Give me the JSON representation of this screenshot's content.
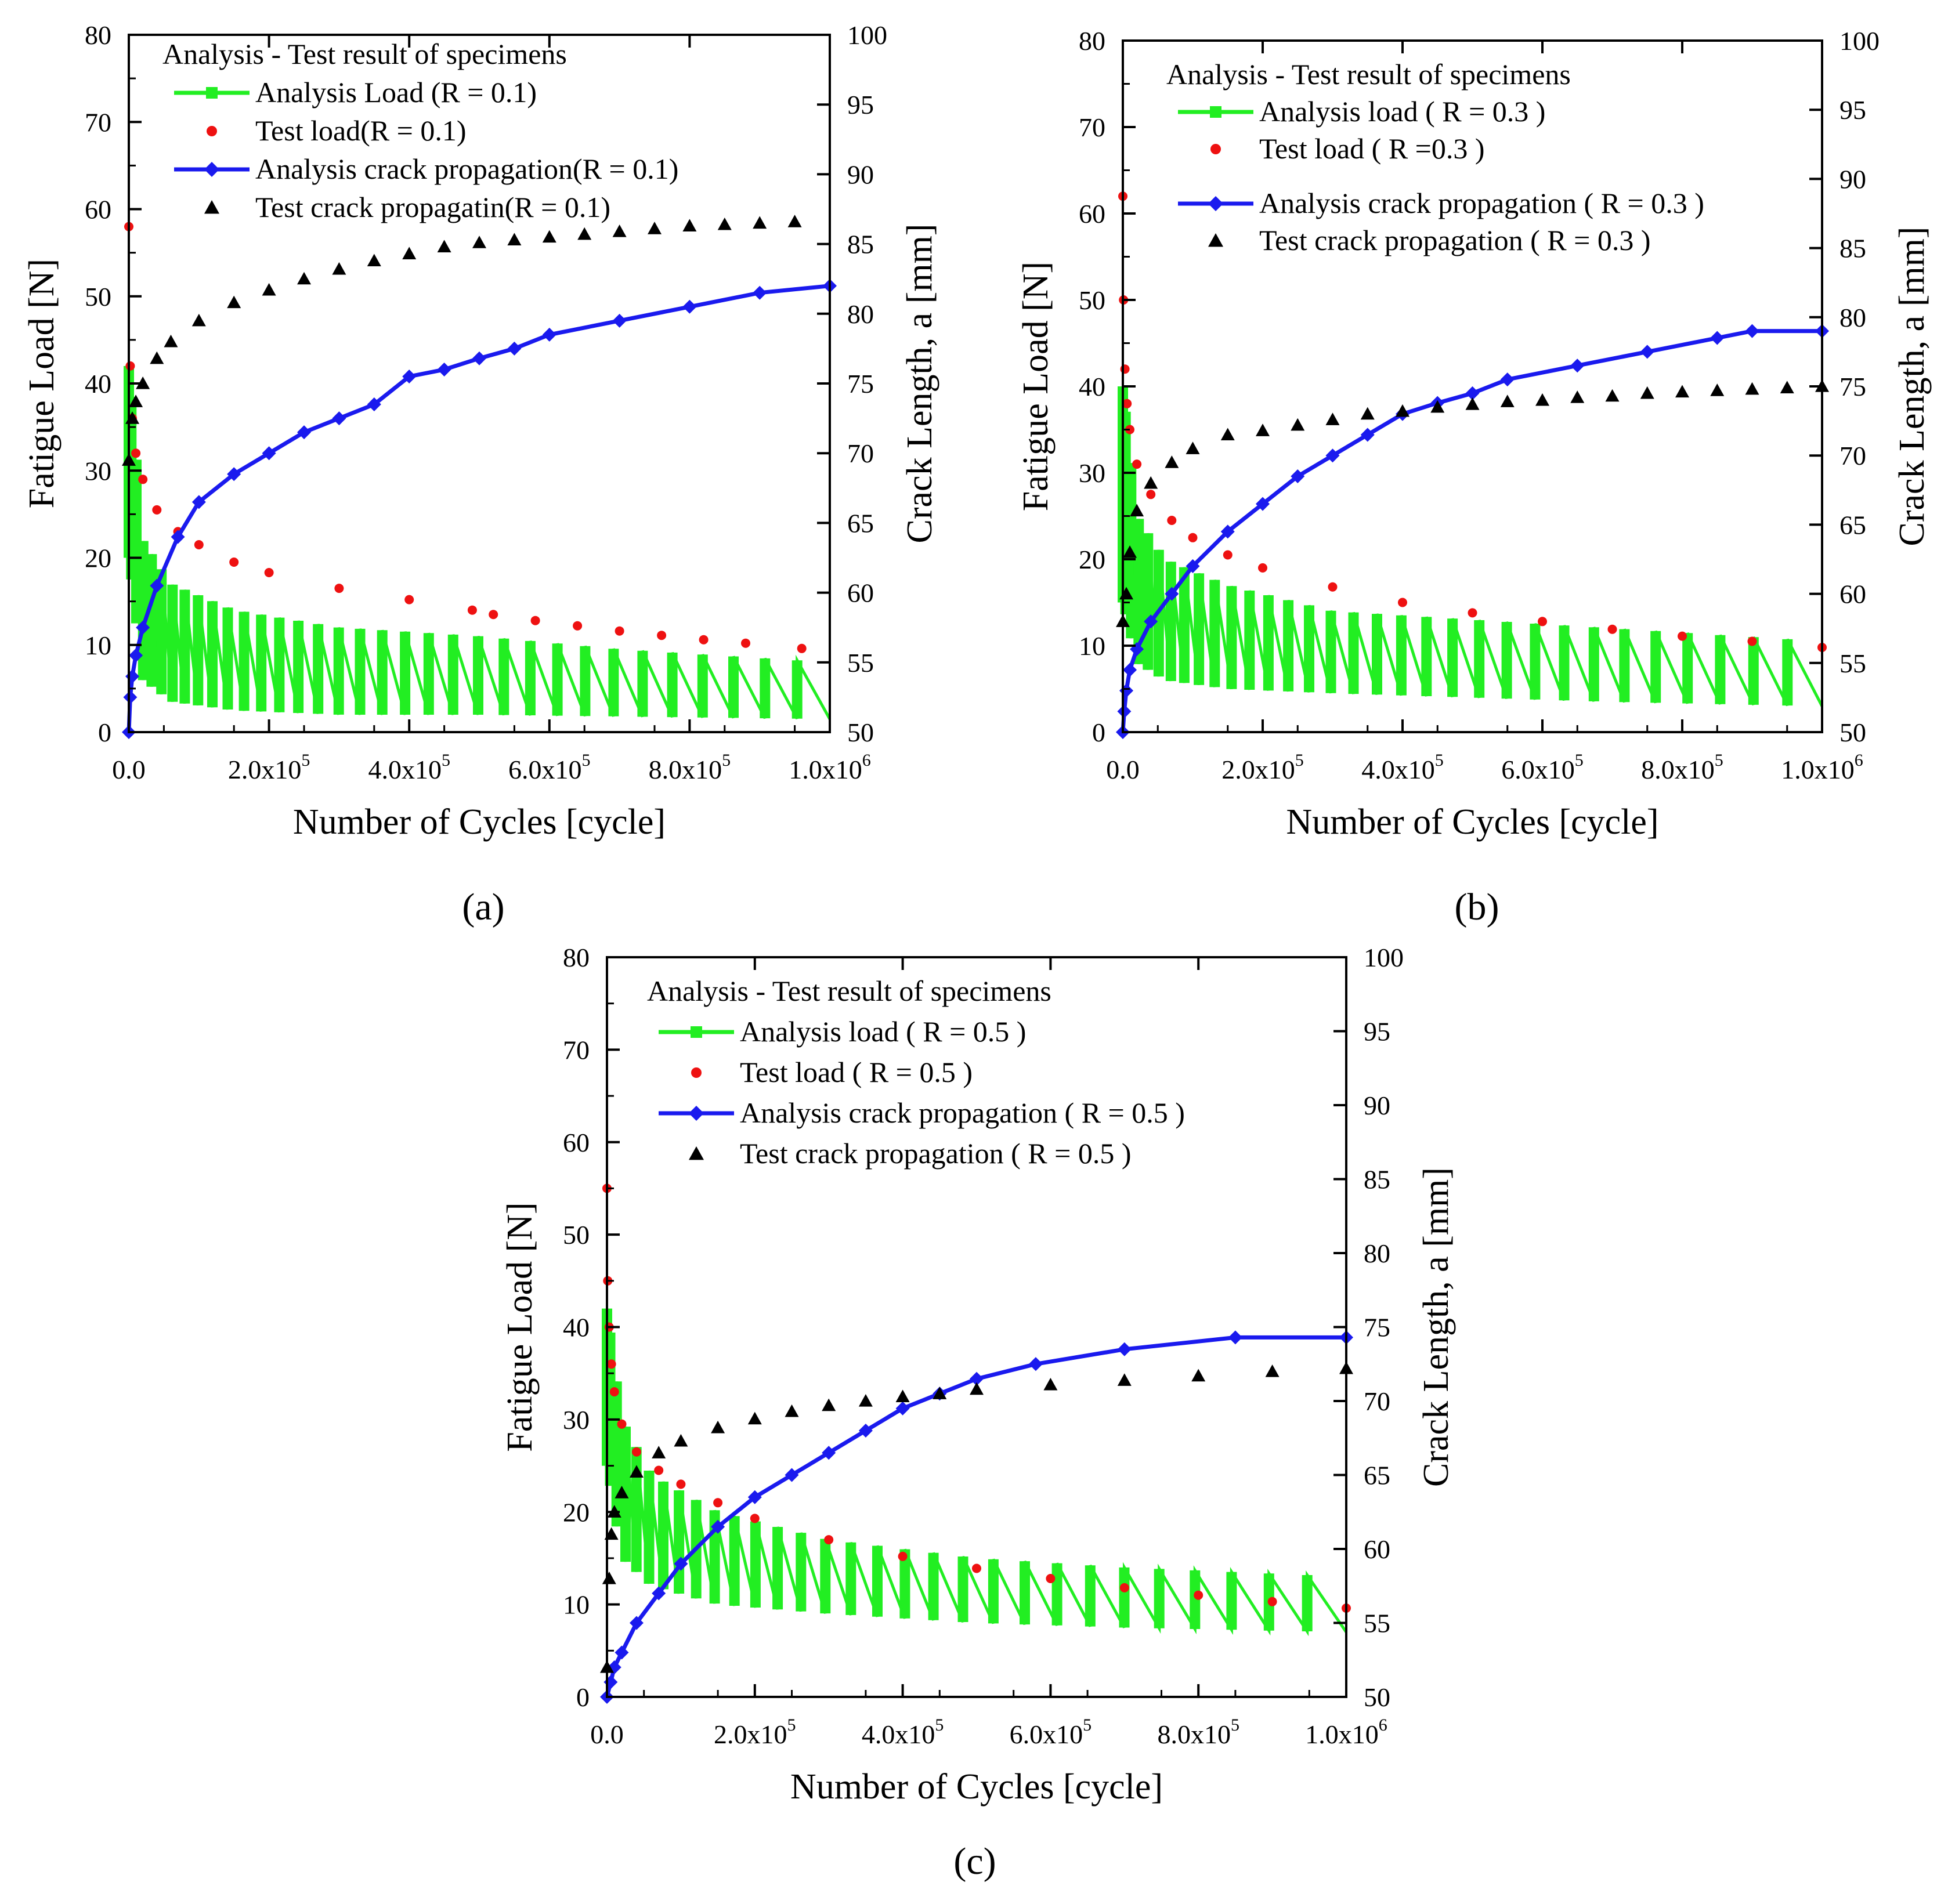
{
  "figure": {
    "panel_labels": [
      "(a)",
      "(b)",
      "(c)"
    ]
  },
  "colors": {
    "analysis_load": "#22ee22",
    "test_load": "#ee1111",
    "analysis_crack": "#1a1aee",
    "test_crack": "#000000"
  },
  "chart_data": [
    {
      "type": "line",
      "panel": "(a)",
      "R": 0.1,
      "xlabel": "Number of Cycles [cycle]",
      "ylabel_left": "Fatigue Load [N]",
      "ylabel_right": "Crack Length, a [mm]",
      "xlim": [
        0,
        1000000
      ],
      "ylim_left": [
        0,
        80
      ],
      "ylim_right": [
        50,
        100
      ],
      "x_ticks": [
        {
          "m": "0.0",
          "e": ""
        },
        {
          "m": "2.0x10",
          "e": "5"
        },
        {
          "m": "4.0x10",
          "e": "5"
        },
        {
          "m": "6.0x10",
          "e": "5"
        },
        {
          "m": "8.0x10",
          "e": "5"
        },
        {
          "m": "1.0x10",
          "e": "6"
        }
      ],
      "y_ticks_left": [
        "0",
        "10",
        "20",
        "30",
        "40",
        "50",
        "60",
        "70",
        "80"
      ],
      "y_ticks_right": [
        "50",
        "55",
        "60",
        "65",
        "70",
        "75",
        "80",
        "85",
        "90",
        "95",
        "100"
      ],
      "legend_title": "Analysis - Test result of specimens",
      "legend": [
        "Analysis Load (R = 0.1)",
        "Test load(R = 0.1)",
        "Analysis crack propagation(R = 0.1)",
        "Test crack propagatin(R = 0.1)"
      ],
      "series": [
        {
          "name": "Analysis Load (R = 0.1)",
          "axis": "left",
          "style": "green-sawtooth",
          "envelope_x": [
            0,
            20000,
            60000,
            150000,
            300000,
            500000,
            700000,
            1000000
          ],
          "envelope_max": [
            42,
            22,
            17,
            14,
            12,
            11,
            9.5,
            8
          ],
          "envelope_min": [
            20,
            6,
            3.5,
            2.5,
            2,
            2,
            1.8,
            1.5
          ],
          "cycles": 34
        },
        {
          "name": "Test load(R = 0.1)",
          "axis": "left",
          "style": "red-dots",
          "x": [
            0,
            2000,
            5000,
            10000,
            20000,
            40000,
            70000,
            100000,
            150000,
            200000,
            300000,
            400000,
            490000,
            520000,
            580000,
            640000,
            700000,
            760000,
            820000,
            880000,
            960000
          ],
          "y": [
            58,
            42,
            36,
            32,
            29,
            25.5,
            23,
            21.5,
            19.5,
            18.3,
            16.5,
            15.2,
            14,
            13.5,
            12.8,
            12.2,
            11.6,
            11.1,
            10.6,
            10.2,
            9.6
          ]
        },
        {
          "name": "Analysis crack propagation(R = 0.1)",
          "axis": "right",
          "style": "blue-diamond-line",
          "x": [
            0,
            2000,
            5000,
            10000,
            20000,
            40000,
            70000,
            100000,
            150000,
            200000,
            250000,
            300000,
            350000,
            400000,
            450000,
            500000,
            550000,
            600000,
            700000,
            800000,
            900000,
            1000000
          ],
          "y": [
            50,
            52.5,
            54,
            55.5,
            57.5,
            60.5,
            64,
            66.5,
            68.5,
            70,
            71.5,
            72.5,
            73.5,
            75.5,
            76,
            76.8,
            77.5,
            78.5,
            79.5,
            80.5,
            81.5,
            82
          ]
        },
        {
          "name": "Test crack propagatin(R = 0.1)",
          "axis": "right",
          "style": "black-triangles",
          "x": [
            0,
            5000,
            10000,
            20000,
            40000,
            60000,
            100000,
            150000,
            200000,
            250000,
            300000,
            350000,
            400000,
            450000,
            500000,
            550000,
            600000,
            650000,
            700000,
            750000,
            800000,
            850000,
            900000,
            950000
          ],
          "y": [
            69.5,
            72.5,
            73.7,
            75,
            76.8,
            78,
            79.5,
            80.8,
            81.7,
            82.5,
            83.2,
            83.8,
            84.3,
            84.8,
            85.1,
            85.3,
            85.5,
            85.7,
            85.9,
            86.1,
            86.3,
            86.4,
            86.5,
            86.6
          ]
        }
      ]
    },
    {
      "type": "line",
      "panel": "(b)",
      "R": 0.3,
      "xlabel": "Number of Cycles [cycle]",
      "ylabel_left": "Fatigue Load [N]",
      "ylabel_right": "Crack Length, a [mm]",
      "xlim": [
        0,
        1000000
      ],
      "ylim_left": [
        0,
        80
      ],
      "ylim_right": [
        50,
        100
      ],
      "x_ticks": [
        {
          "m": "0.0",
          "e": ""
        },
        {
          "m": "2.0x10",
          "e": "5"
        },
        {
          "m": "4.0x10",
          "e": "5"
        },
        {
          "m": "6.0x10",
          "e": "5"
        },
        {
          "m": "8.0x10",
          "e": "5"
        },
        {
          "m": "1.0x10",
          "e": "6"
        }
      ],
      "y_ticks_left": [
        "0",
        "10",
        "20",
        "30",
        "40",
        "50",
        "60",
        "70",
        "80"
      ],
      "y_ticks_right": [
        "50",
        "55",
        "60",
        "65",
        "70",
        "75",
        "80",
        "85",
        "90",
        "95",
        "100"
      ],
      "legend_title": "Analysis - Test result of specimens",
      "legend": [
        "Analysis load ( R = 0.3 )",
        "Test load ( R =0.3 )",
        "Analysis crack propagation ( R = 0.3 )",
        "Test crack propagation ( R = 0.3 )"
      ],
      "series": [
        {
          "name": "Analysis load ( R = 0.3 )",
          "axis": "left",
          "style": "green-sawtooth",
          "envelope_x": [
            0,
            20000,
            60000,
            150000,
            300000,
            500000,
            700000,
            1000000
          ],
          "envelope_max": [
            40,
            25,
            20,
            17,
            14,
            13,
            12,
            10.5
          ],
          "envelope_min": [
            15,
            8,
            6,
            5,
            4.5,
            4,
            3.5,
            3
          ],
          "cycles": 32
        },
        {
          "name": "Test load ( R =0.3 )",
          "axis": "left",
          "style": "red-dots",
          "x": [
            0,
            1000,
            3000,
            6000,
            10000,
            20000,
            40000,
            70000,
            100000,
            150000,
            200000,
            300000,
            400000,
            500000,
            600000,
            700000,
            800000,
            900000,
            1000000
          ],
          "y": [
            62,
            50,
            42,
            38,
            35,
            31,
            27.5,
            24.5,
            22.5,
            20.5,
            19,
            16.8,
            15,
            13.8,
            12.8,
            11.9,
            11.1,
            10.5,
            9.8
          ]
        },
        {
          "name": "Analysis crack propagation ( R = 0.3 )",
          "axis": "right",
          "style": "blue-diamond-line",
          "x": [
            0,
            2000,
            5000,
            10000,
            20000,
            40000,
            70000,
            100000,
            150000,
            200000,
            250000,
            300000,
            350000,
            400000,
            450000,
            500000,
            550000,
            650000,
            750000,
            850000,
            900000,
            1000000
          ],
          "y": [
            50,
            51.5,
            53,
            54.5,
            56,
            58,
            60,
            62,
            64.5,
            66.5,
            68.5,
            70,
            71.5,
            73,
            73.8,
            74.5,
            75.5,
            76.5,
            77.5,
            78.5,
            79,
            79
          ]
        },
        {
          "name": "Test crack propagation ( R = 0.3 )",
          "axis": "right",
          "style": "black-triangles",
          "x": [
            0,
            5000,
            10000,
            20000,
            40000,
            70000,
            100000,
            150000,
            200000,
            250000,
            300000,
            350000,
            400000,
            450000,
            500000,
            550000,
            600000,
            650000,
            700000,
            750000,
            800000,
            850000,
            900000,
            950000,
            1000000
          ],
          "y": [
            58,
            60,
            63,
            66,
            68,
            69.5,
            70.5,
            71.5,
            71.8,
            72.2,
            72.6,
            73,
            73.2,
            73.5,
            73.7,
            73.9,
            74,
            74.2,
            74.3,
            74.5,
            74.6,
            74.7,
            74.8,
            74.9,
            75
          ]
        }
      ]
    },
    {
      "type": "line",
      "panel": "(c)",
      "R": 0.5,
      "xlabel": "Number of Cycles [cycle]",
      "ylabel_left": "Fatigue Load [N]",
      "ylabel_right": "Crack Length, a [mm]",
      "xlim": [
        0,
        1000000
      ],
      "ylim_left": [
        0,
        80
      ],
      "ylim_right": [
        50,
        100
      ],
      "x_ticks": [
        {
          "m": "0.0",
          "e": ""
        },
        {
          "m": "2.0x10",
          "e": "5"
        },
        {
          "m": "4.0x10",
          "e": "5"
        },
        {
          "m": "6.0x10",
          "e": "5"
        },
        {
          "m": "8.0x10",
          "e": "5"
        },
        {
          "m": "1.0x10",
          "e": "6"
        }
      ],
      "y_ticks_left": [
        "0",
        "10",
        "20",
        "30",
        "40",
        "50",
        "60",
        "70",
        "80"
      ],
      "y_ticks_right": [
        "50",
        "55",
        "60",
        "65",
        "70",
        "75",
        "80",
        "85",
        "90",
        "95",
        "100"
      ],
      "legend_title": "Analysis - Test result of specimens",
      "legend": [
        "Analysis load ( R = 0.5 )",
        "Test load ( R = 0.5 )",
        "Analysis crack propagation ( R = 0.5 )",
        "Test crack propagation ( R = 0.5 )"
      ],
      "series": [
        {
          "name": "Analysis load ( R = 0.5 )",
          "axis": "left",
          "style": "green-sawtooth",
          "envelope_x": [
            0,
            20000,
            60000,
            150000,
            300000,
            500000,
            700000,
            1000000
          ],
          "envelope_max": [
            42,
            30,
            24,
            20,
            17,
            15,
            14,
            13
          ],
          "envelope_min": [
            25,
            15,
            12,
            10,
            9,
            8,
            7.5,
            7
          ],
          "cycles": 30
        },
        {
          "name": "Test load ( R = 0.5 )",
          "axis": "left",
          "style": "red-dots",
          "x": [
            0,
            1000,
            3000,
            6000,
            10000,
            20000,
            40000,
            70000,
            100000,
            150000,
            200000,
            300000,
            400000,
            500000,
            600000,
            700000,
            800000,
            900000,
            1000000
          ],
          "y": [
            55,
            45,
            40,
            36,
            33,
            29.5,
            26.5,
            24.5,
            23,
            21,
            19.3,
            17,
            15.2,
            13.9,
            12.8,
            11.8,
            11,
            10.3,
            9.6
          ]
        },
        {
          "name": "Analysis crack propagation ( R = 0.5 )",
          "axis": "right",
          "style": "blue-diamond-line",
          "x": [
            0,
            5000,
            10000,
            20000,
            40000,
            70000,
            100000,
            150000,
            200000,
            250000,
            300000,
            350000,
            400000,
            450000,
            500000,
            580000,
            700000,
            850000,
            1000000
          ],
          "y": [
            50,
            51,
            52,
            53,
            55,
            57,
            59,
            61.5,
            63.5,
            65,
            66.5,
            68,
            69.5,
            70.5,
            71.5,
            72.5,
            73.5,
            74.3,
            74.3
          ]
        },
        {
          "name": "Test crack propagation ( R = 0.5 )",
          "axis": "right",
          "style": "black-triangles",
          "x": [
            0,
            3000,
            6000,
            10000,
            20000,
            40000,
            70000,
            100000,
            150000,
            200000,
            250000,
            300000,
            350000,
            400000,
            450000,
            500000,
            600000,
            700000,
            800000,
            900000,
            1000000
          ],
          "y": [
            52,
            58,
            61,
            62.5,
            63.8,
            65.2,
            66.5,
            67.3,
            68.2,
            68.8,
            69.3,
            69.7,
            70,
            70.3,
            70.5,
            70.8,
            71.1,
            71.4,
            71.7,
            72,
            72.2
          ]
        }
      ]
    }
  ]
}
